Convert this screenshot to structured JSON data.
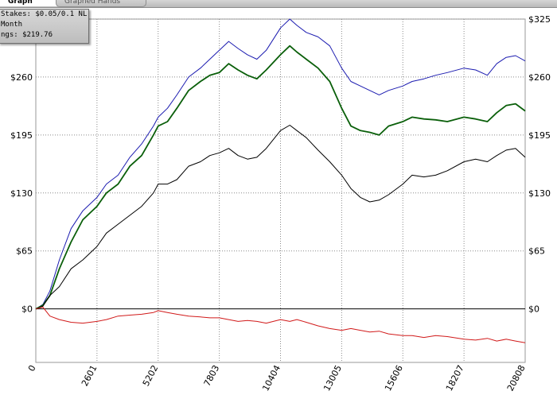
{
  "tabs": [
    {
      "label": "Graph",
      "active": true
    },
    {
      "label": "Graphed Hands",
      "active": false
    }
  ],
  "info": {
    "line1": "Stakes: $0.05/0.1 NL",
    "line2": "Month",
    "line3": "ngs: $219.76"
  },
  "colors": {
    "blue_series": "#1b1bb0",
    "green_series": "#0a5f0a",
    "black_series": "#000000",
    "red_series": "#d11a1a",
    "grid": "#8a8a8a"
  },
  "chart_data": {
    "type": "line",
    "x_ticks": [
      "0",
      "2601",
      "5202",
      "7803",
      "10404",
      "13005",
      "15606",
      "18207",
      "20808"
    ],
    "y_ticks": [
      "$0",
      "$65",
      "$130",
      "$195",
      "$260",
      "$325"
    ],
    "y_ticks_right": [
      "$0",
      "$65",
      "$130",
      "$195",
      "$260",
      "$325"
    ],
    "xlim": [
      0,
      20808
    ],
    "ylim": [
      -60,
      325
    ],
    "grid": true,
    "series": [
      {
        "color_key": "blue_series",
        "x": [
          0,
          300,
          600,
          1000,
          1500,
          2000,
          2601,
          3000,
          3500,
          4000,
          4500,
          5000,
          5202,
          5600,
          6000,
          6500,
          7000,
          7400,
          7803,
          8200,
          8600,
          9000,
          9400,
          9800,
          10404,
          10800,
          11100,
          11500,
          12000,
          12500,
          13005,
          13400,
          13800,
          14200,
          14600,
          15000,
          15606,
          16000,
          16500,
          17000,
          17500,
          18207,
          18700,
          19200,
          19600,
          20000,
          20400,
          20808
        ],
        "y": [
          0,
          5,
          20,
          55,
          90,
          110,
          125,
          140,
          150,
          170,
          185,
          205,
          215,
          225,
          240,
          260,
          270,
          280,
          290,
          300,
          292,
          285,
          280,
          290,
          315,
          325,
          318,
          310,
          305,
          295,
          270,
          255,
          250,
          245,
          240,
          245,
          250,
          255,
          258,
          262,
          265,
          270,
          268,
          262,
          275,
          282,
          284,
          278
        ]
      },
      {
        "color_key": "green_series",
        "x": [
          0,
          300,
          600,
          1000,
          1500,
          2000,
          2601,
          3000,
          3500,
          4000,
          4500,
          5000,
          5202,
          5600,
          6000,
          6500,
          7000,
          7400,
          7803,
          8200,
          8600,
          9000,
          9400,
          9800,
          10404,
          10800,
          11100,
          11500,
          12000,
          12500,
          13005,
          13400,
          13800,
          14200,
          14600,
          15000,
          15606,
          16000,
          16500,
          17000,
          17500,
          18207,
          18700,
          19200,
          19600,
          20000,
          20400,
          20808
        ],
        "y": [
          0,
          4,
          15,
          45,
          75,
          100,
          115,
          130,
          140,
          160,
          172,
          195,
          205,
          210,
          225,
          245,
          255,
          262,
          265,
          275,
          268,
          262,
          258,
          268,
          285,
          295,
          288,
          280,
          270,
          255,
          225,
          205,
          200,
          198,
          195,
          205,
          210,
          215,
          213,
          212,
          210,
          215,
          213,
          210,
          220,
          228,
          230,
          222
        ]
      },
      {
        "color_key": "black_series",
        "x": [
          0,
          300,
          600,
          1000,
          1500,
          2000,
          2601,
          3000,
          3500,
          4000,
          4500,
          5000,
          5202,
          5600,
          6000,
          6500,
          7000,
          7400,
          7803,
          8200,
          8600,
          9000,
          9400,
          9800,
          10404,
          10800,
          11100,
          11500,
          12000,
          12500,
          13005,
          13400,
          13800,
          14200,
          14600,
          15000,
          15606,
          16000,
          16500,
          17000,
          17500,
          18207,
          18700,
          19200,
          19600,
          20000,
          20400,
          20808
        ],
        "y": [
          0,
          3,
          15,
          25,
          45,
          55,
          70,
          85,
          95,
          105,
          115,
          130,
          140,
          140,
          145,
          160,
          165,
          172,
          175,
          180,
          172,
          168,
          170,
          180,
          200,
          206,
          200,
          192,
          178,
          165,
          150,
          135,
          125,
          120,
          122,
          128,
          140,
          150,
          148,
          150,
          155,
          165,
          168,
          165,
          172,
          178,
          180,
          170
        ]
      },
      {
        "color_key": "red_series",
        "x": [
          0,
          300,
          600,
          1000,
          1500,
          2000,
          2601,
          3000,
          3500,
          4000,
          4500,
          5000,
          5202,
          5600,
          6000,
          6500,
          7000,
          7400,
          7803,
          8200,
          8600,
          9000,
          9400,
          9800,
          10404,
          10800,
          11100,
          11500,
          12000,
          12500,
          13005,
          13400,
          13800,
          14200,
          14600,
          15000,
          15606,
          16000,
          16500,
          17000,
          17500,
          18207,
          18700,
          19200,
          19600,
          20000,
          20400,
          20808
        ],
        "y": [
          0,
          2,
          -8,
          -12,
          -15,
          -16,
          -14,
          -12,
          -8,
          -7,
          -6,
          -4,
          -2,
          -4,
          -6,
          -8,
          -9,
          -10,
          -10,
          -12,
          -14,
          -13,
          -14,
          -16,
          -12,
          -14,
          -12,
          -15,
          -19,
          -22,
          -24,
          -22,
          -24,
          -26,
          -25,
          -28,
          -30,
          -30,
          -32,
          -30,
          -31,
          -34,
          -35,
          -33,
          -36,
          -34,
          -36,
          -38
        ]
      }
    ]
  }
}
